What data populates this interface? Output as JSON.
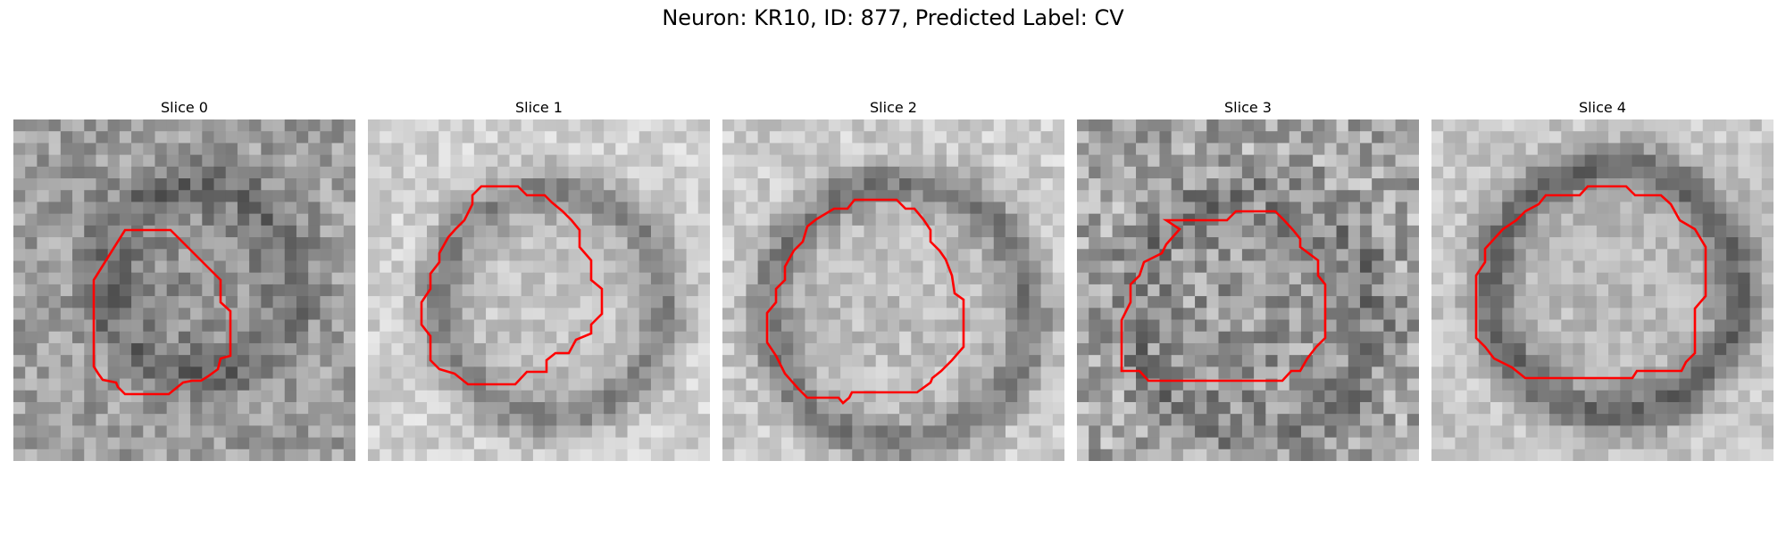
{
  "figure": {
    "title": "Neuron: KR10, ID: 877, Predicted Label: CV"
  },
  "contour_color": "#ff0000",
  "panels": [
    {
      "title": "Slice 0"
    },
    {
      "title": "Slice 1"
    },
    {
      "title": "Slice 2"
    },
    {
      "title": "Slice 3"
    },
    {
      "title": "Slice 4"
    }
  ]
}
